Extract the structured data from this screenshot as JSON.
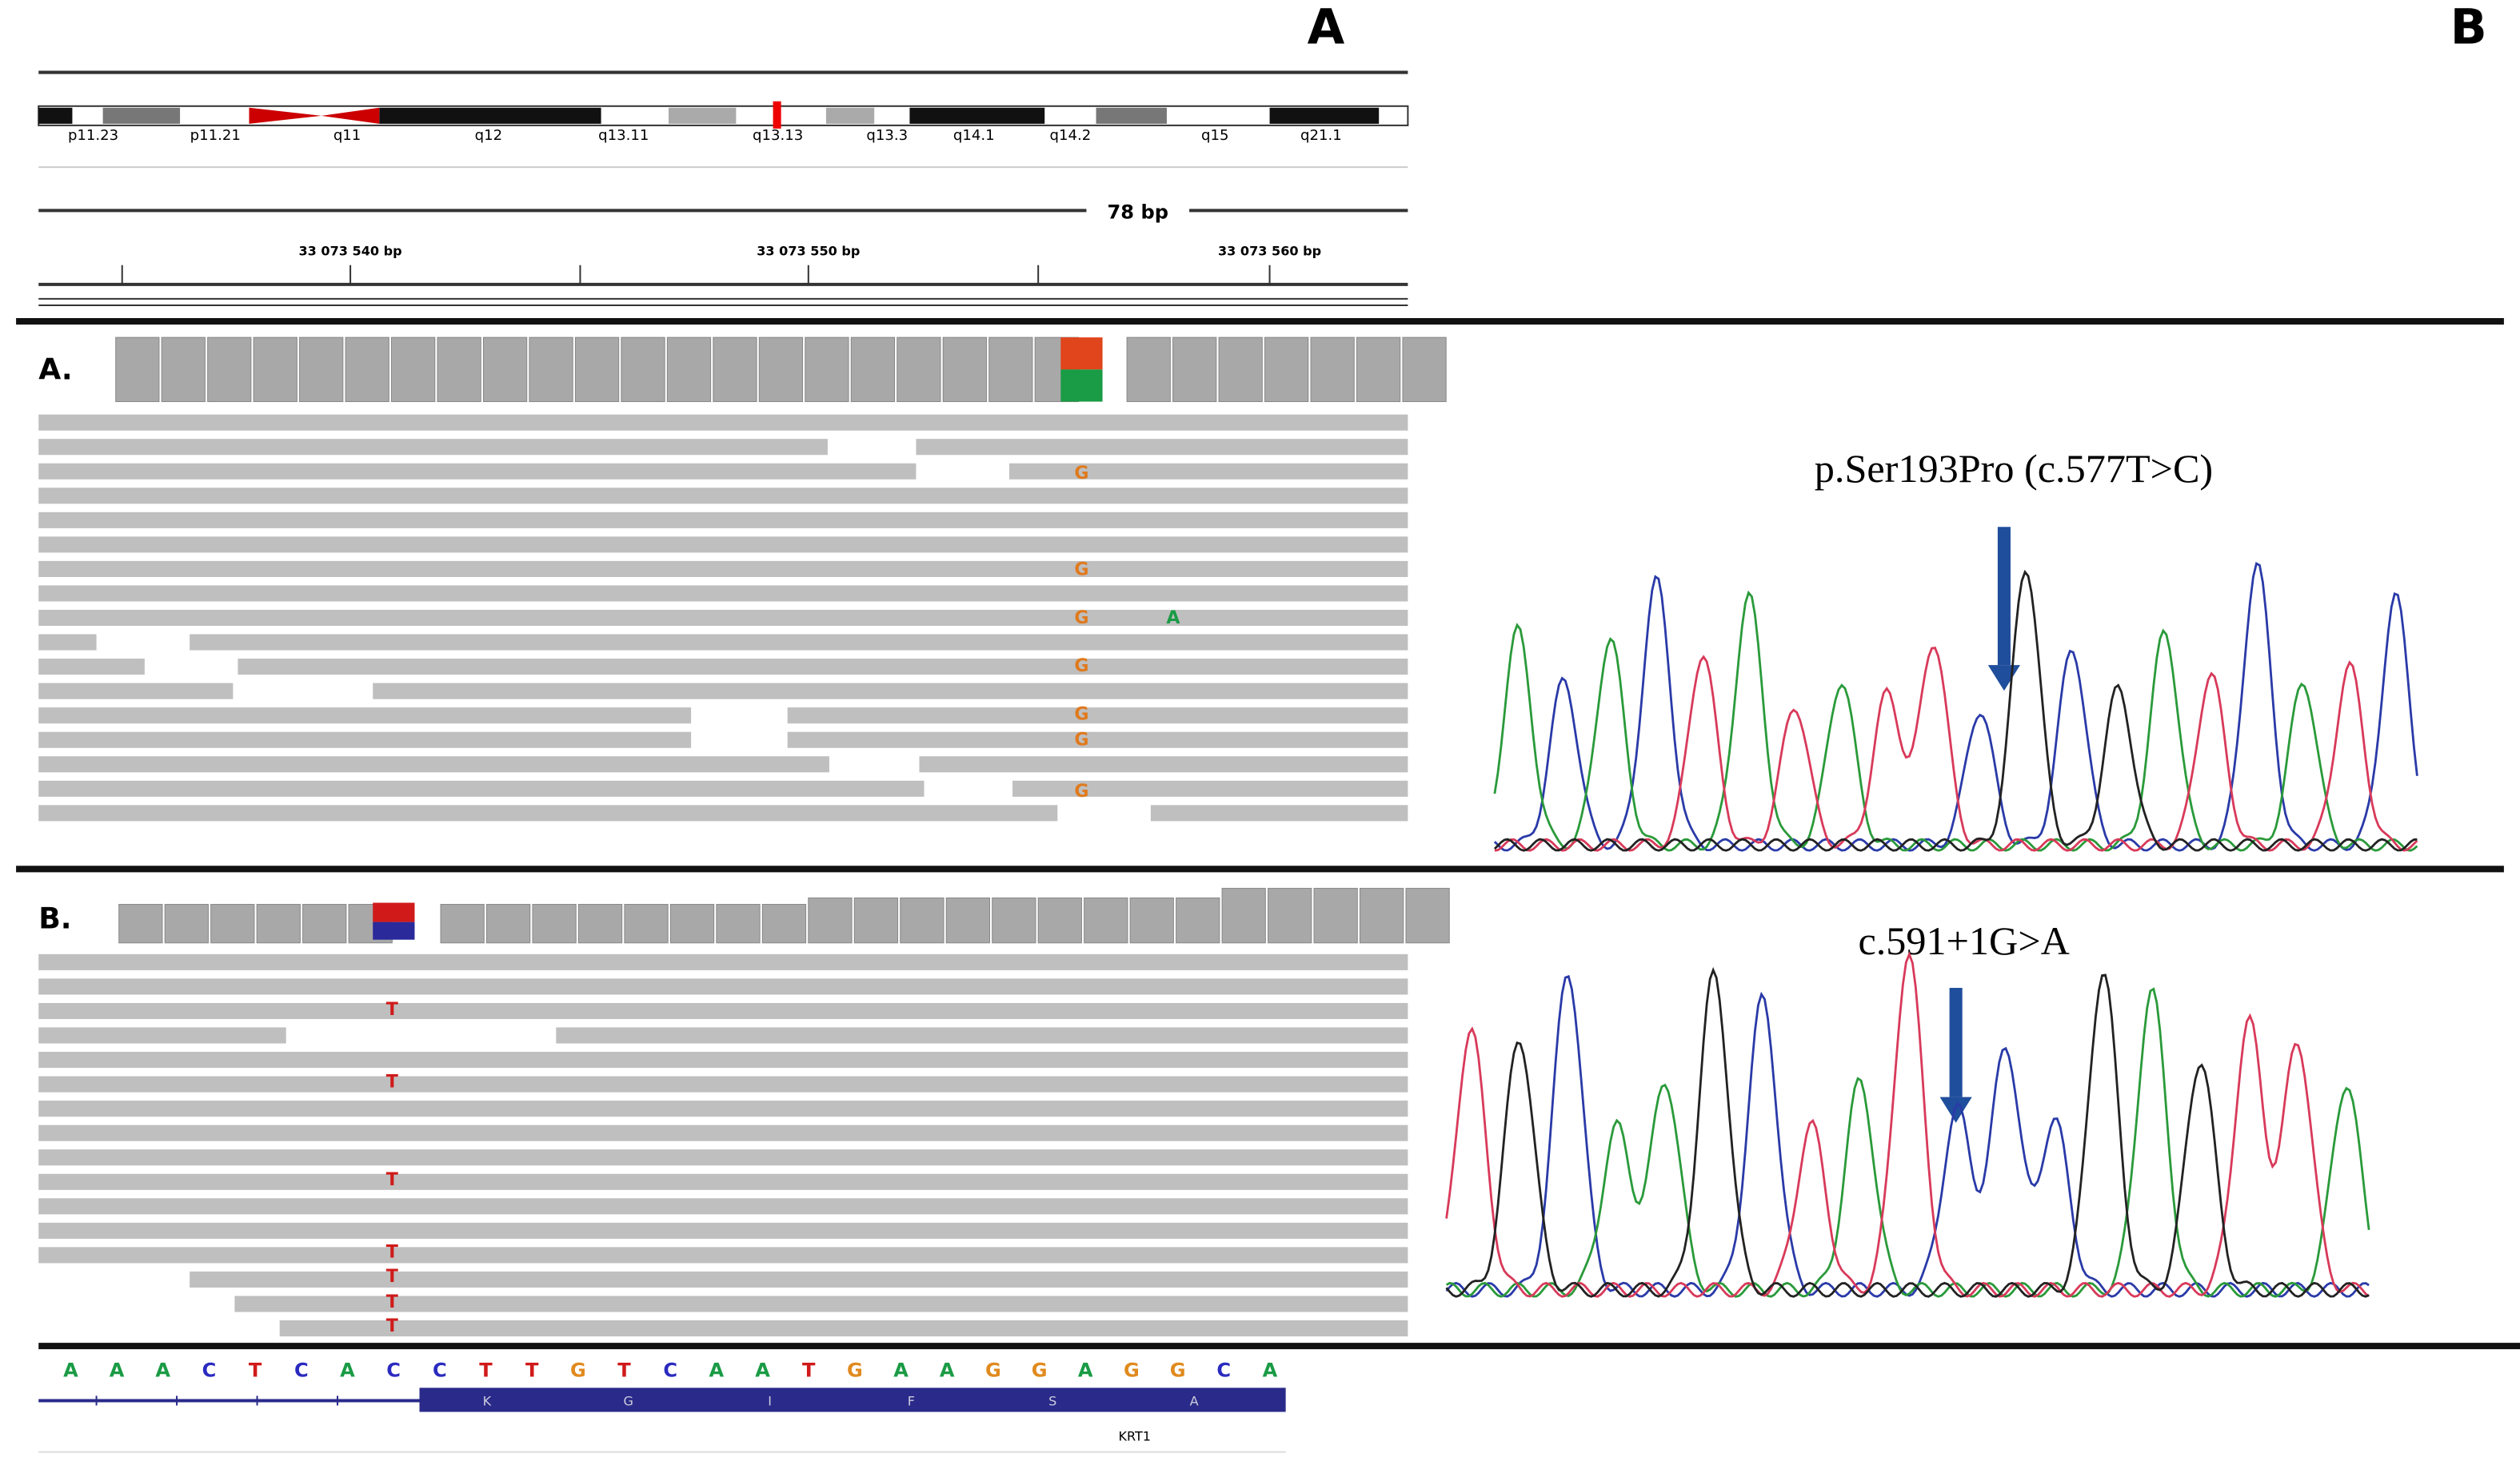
{
  "panel_labels": {
    "left": "A",
    "right": "B"
  },
  "ideogram": {
    "bands": [
      "p11.23",
      "p11.21",
      "q11",
      "q12",
      "q13.11",
      "q13.13",
      "q13.3",
      "q14.1",
      "q14.2",
      "q15",
      "q21.1"
    ]
  },
  "ruler": {
    "span": "78 bp",
    "positions": [
      "33 073 540 bp",
      "33 073 550 bp",
      "33 073 560 bp"
    ]
  },
  "track_a": {
    "label": "A.",
    "mismatches": [
      "G",
      "G",
      "G",
      "G",
      "G",
      "G",
      "G",
      "A"
    ]
  },
  "track_b": {
    "label": "B.",
    "mismatches": [
      "T",
      "T",
      "T",
      "T",
      "T",
      "T",
      "T"
    ]
  },
  "chromatogram_a": {
    "label": "p.Ser193Pro (c.577T>C)"
  },
  "chromatogram_b": {
    "label": "c.591+1G>A"
  },
  "reference": {
    "sequence": [
      "A",
      "A",
      "A",
      "C",
      "T",
      "C",
      "A",
      "C",
      "C",
      "T",
      "T",
      "G",
      "T",
      "C",
      "A",
      "A",
      "T",
      "G",
      "A",
      "A",
      "G",
      "G",
      "A",
      "G",
      "G",
      "C",
      "A"
    ]
  },
  "gene": {
    "amino_acids": [
      "K",
      "G",
      "I",
      "F",
      "S",
      "A"
    ],
    "name": "KRT1"
  }
}
